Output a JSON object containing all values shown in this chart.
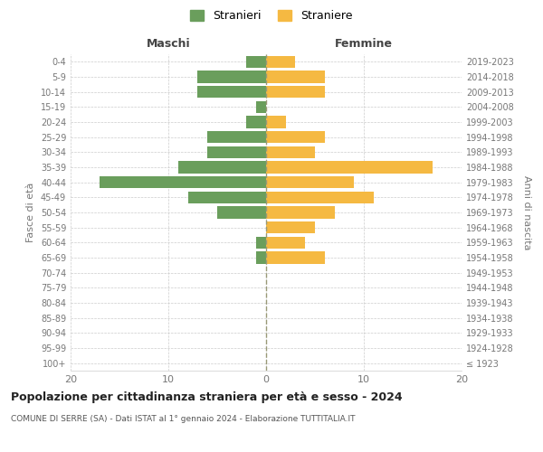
{
  "age_groups": [
    "100+",
    "95-99",
    "90-94",
    "85-89",
    "80-84",
    "75-79",
    "70-74",
    "65-69",
    "60-64",
    "55-59",
    "50-54",
    "45-49",
    "40-44",
    "35-39",
    "30-34",
    "25-29",
    "20-24",
    "15-19",
    "10-14",
    "5-9",
    "0-4"
  ],
  "birth_years": [
    "≤ 1923",
    "1924-1928",
    "1929-1933",
    "1934-1938",
    "1939-1943",
    "1944-1948",
    "1949-1953",
    "1954-1958",
    "1959-1963",
    "1964-1968",
    "1969-1973",
    "1974-1978",
    "1979-1983",
    "1984-1988",
    "1989-1993",
    "1994-1998",
    "1999-2003",
    "2004-2008",
    "2009-2013",
    "2014-2018",
    "2019-2023"
  ],
  "males": [
    0,
    0,
    0,
    0,
    0,
    0,
    0,
    1,
    1,
    0,
    5,
    8,
    17,
    9,
    6,
    6,
    2,
    1,
    7,
    7,
    2
  ],
  "females": [
    0,
    0,
    0,
    0,
    0,
    0,
    0,
    6,
    4,
    5,
    7,
    11,
    9,
    17,
    5,
    6,
    2,
    0,
    6,
    6,
    3
  ],
  "male_color": "#6a9e5c",
  "female_color": "#f5b942",
  "background_color": "#ffffff",
  "grid_color": "#cccccc",
  "title": "Popolazione per cittadinanza straniera per età e sesso - 2024",
  "subtitle": "COMUNE DI SERRE (SA) - Dati ISTAT al 1° gennaio 2024 - Elaborazione TUTTITALIA.IT",
  "xlabel_left": "Maschi",
  "xlabel_right": "Femmine",
  "ylabel_left": "Fasce di età",
  "ylabel_right": "Anni di nascita",
  "legend_male": "Stranieri",
  "legend_female": "Straniere",
  "xlim": 20,
  "bar_height": 0.8
}
